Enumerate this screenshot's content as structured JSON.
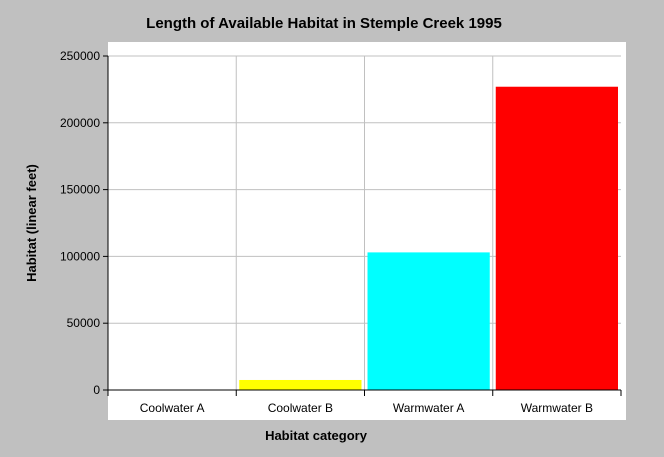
{
  "chart_data": {
    "type": "bar",
    "title": "Length of Available Habitat in Stemple Creek 1995",
    "xlabel": "Habitat category",
    "ylabel": "Habitat (linear feet)",
    "categories": [
      "Coolwater A",
      "Coolwater B",
      "Warmwater A",
      "Warmwater B"
    ],
    "values": [
      0,
      7500,
      103000,
      227000
    ],
    "colors": [
      "#ffffff",
      "#ffff00",
      "#00ffff",
      "#ff0000"
    ],
    "ylim": [
      0,
      250000
    ],
    "yticks": [
      0,
      50000,
      100000,
      150000,
      200000,
      250000
    ],
    "ytick_labels": [
      "0",
      "50000",
      "100000",
      "150000",
      "200000",
      "250000"
    ],
    "grid": true,
    "background": "#c0c0c0",
    "plot_background": "#ffffff",
    "grid_color": "#c0c0c0"
  }
}
